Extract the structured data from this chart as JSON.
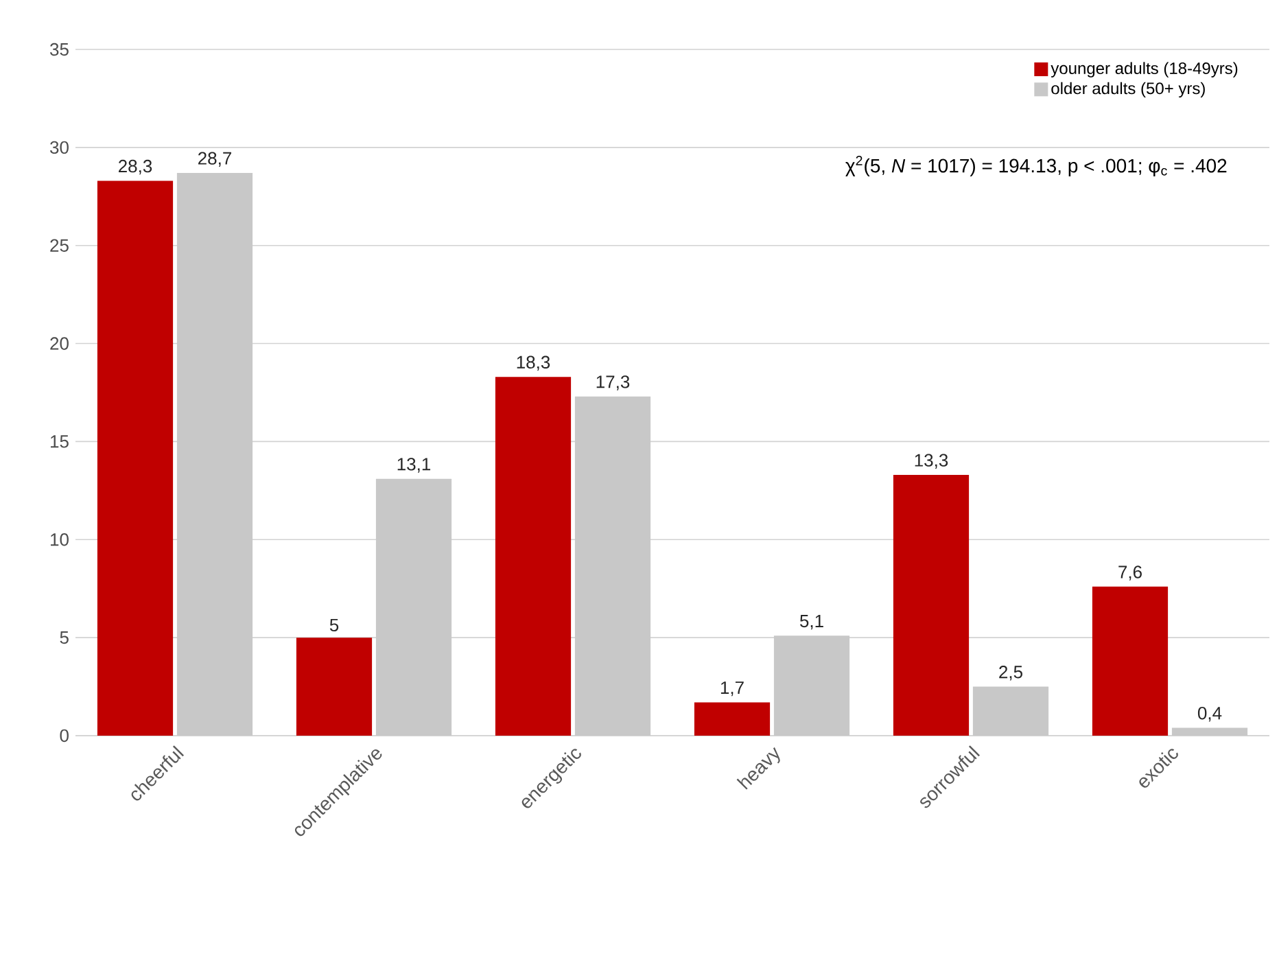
{
  "chart_data": {
    "type": "bar",
    "categories": [
      "cheerful",
      "contemplative",
      "energetic",
      "heavy",
      "sorrowful",
      "exotic"
    ],
    "series": [
      {
        "name": "younger adults (18-49yrs)",
        "color": "#c00000",
        "values": [
          28.3,
          5,
          18.3,
          1.7,
          13.3,
          7.6
        ],
        "value_labels": [
          "28,3",
          "5",
          "18,3",
          "1,7",
          "13,3",
          "7,6"
        ]
      },
      {
        "name": "older adults (50+ yrs)",
        "color": "#c8c8c8",
        "values": [
          28.7,
          13.1,
          17.3,
          5.1,
          2.5,
          0.4
        ],
        "value_labels": [
          "28,7",
          "13,1",
          "17,3",
          "5,1",
          "2,5",
          "0,4"
        ]
      }
    ],
    "ylim": [
      0,
      35
    ],
    "yticks": [
      0,
      5,
      10,
      15,
      20,
      25,
      30,
      35
    ],
    "grid": "y",
    "legend": "top right",
    "annotations": [
      "χ$^{2}$(5, *N* = 1017) = 194.13, p < .001; φ$_{c}$ = .402"
    ]
  }
}
